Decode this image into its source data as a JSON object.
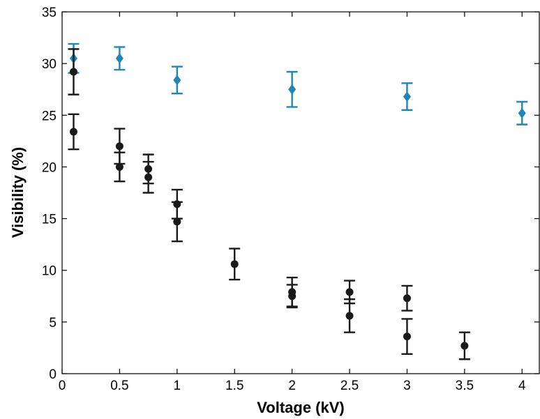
{
  "chart_data": {
    "type": "scatter",
    "title": "",
    "xlabel": "Voltage (kV)",
    "ylabel": "Visibility (%)",
    "xlim": [
      0,
      4.15
    ],
    "ylim": [
      0,
      35
    ],
    "xticks": [
      0,
      0.5,
      1,
      1.5,
      2,
      2.5,
      3,
      3.5,
      4
    ],
    "xtick_labels": [
      "0",
      "0.5",
      "1",
      "1.5",
      "2",
      "2.5",
      "3",
      "3.5",
      "4"
    ],
    "yticks": [
      0,
      5,
      10,
      15,
      20,
      25,
      30,
      35
    ],
    "ytick_labels": [
      "0",
      "5",
      "10",
      "15",
      "20",
      "25",
      "30",
      "35"
    ],
    "grid": false,
    "legend": "none",
    "series": [
      {
        "marker": "diamond",
        "color": "#1f87b5",
        "points": [
          {
            "x": 0.1,
            "y": 30.5,
            "err": 1.4
          },
          {
            "x": 0.5,
            "y": 30.5,
            "err": 1.1
          },
          {
            "x": 1.0,
            "y": 28.4,
            "err": 1.3
          },
          {
            "x": 2.0,
            "y": 27.5,
            "err": 1.7
          },
          {
            "x": 3.0,
            "y": 26.8,
            "err": 1.3
          },
          {
            "x": 4.0,
            "y": 25.2,
            "err": 1.1
          }
        ]
      },
      {
        "marker": "circle",
        "color": "#1a1a1a",
        "points": [
          {
            "x": 0.1,
            "y": 29.2,
            "err": 2.2
          },
          {
            "x": 0.1,
            "y": 23.4,
            "err": 1.7
          },
          {
            "x": 0.5,
            "y": 22.0,
            "err": 1.7
          },
          {
            "x": 0.5,
            "y": 20.0,
            "err": 1.4
          },
          {
            "x": 0.75,
            "y": 19.8,
            "err": 1.4
          },
          {
            "x": 0.75,
            "y": 19.0,
            "err": 1.5
          },
          {
            "x": 1.0,
            "y": 16.4,
            "err": 1.4
          },
          {
            "x": 1.0,
            "y": 14.7,
            "err": 1.9
          },
          {
            "x": 1.5,
            "y": 10.6,
            "err": 1.5
          },
          {
            "x": 2.0,
            "y": 7.9,
            "err": 1.4
          },
          {
            "x": 2.0,
            "y": 7.5,
            "err": 1.1
          },
          {
            "x": 2.5,
            "y": 7.9,
            "err": 1.1
          },
          {
            "x": 2.5,
            "y": 5.6,
            "err": 1.6
          },
          {
            "x": 3.0,
            "y": 7.3,
            "err": 1.2
          },
          {
            "x": 3.0,
            "y": 3.6,
            "err": 1.7
          },
          {
            "x": 3.5,
            "y": 2.7,
            "err": 1.3
          }
        ]
      }
    ]
  }
}
